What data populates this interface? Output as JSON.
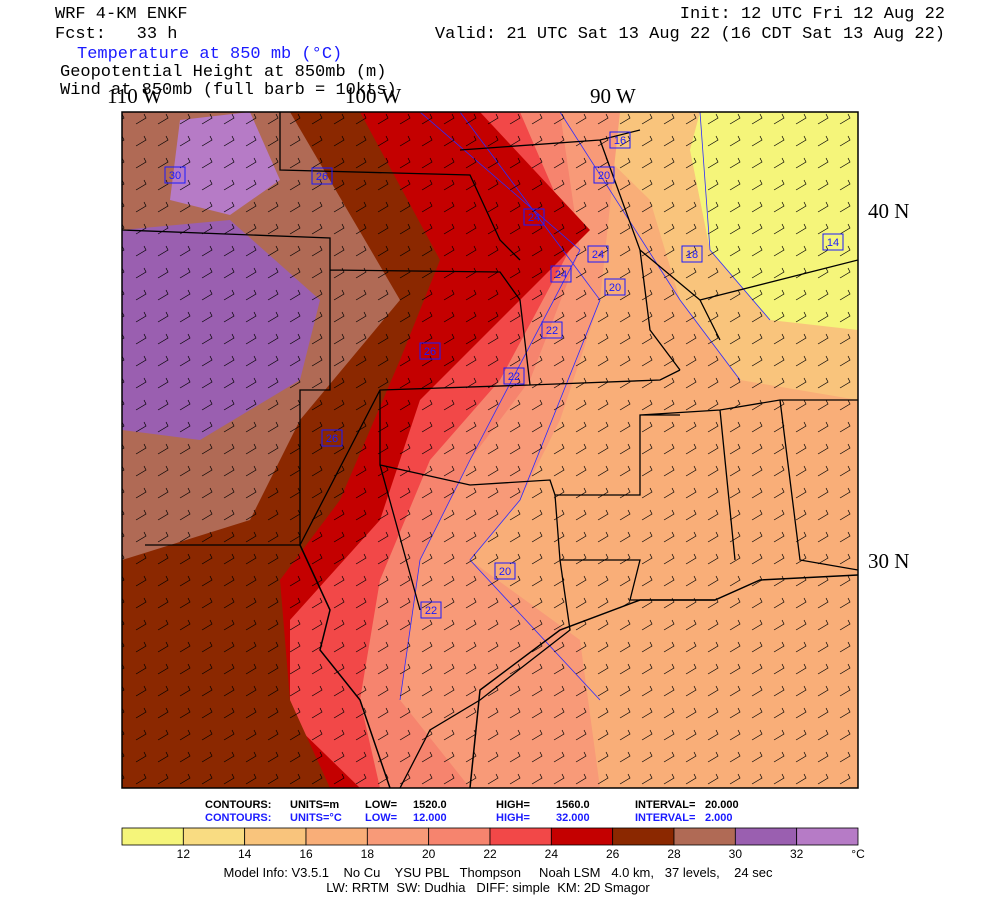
{
  "header": {
    "model": "WRF 4-KM ENKF",
    "fcst": "Fcst:   33 h",
    "init": "Init: 12 UTC Fri 12 Aug 22",
    "valid": "Valid: 21 UTC Sat 13 Aug 22 (16 CDT Sat 13 Aug 22)",
    "fields": [
      "Temperature at 850 mb (°C)",
      "Geopotential Height at 850mb (m)",
      "Wind at 850mb (full barb = 10kts)"
    ]
  },
  "map": {
    "lon_labels": [
      "110 W",
      "100 W",
      "90 W"
    ],
    "lat_labels": [
      "40 N",
      "30 N"
    ],
    "contour_labels": [
      "16",
      "20",
      "24",
      "24",
      "18",
      "14",
      "24",
      "20",
      "22",
      "22",
      "26",
      "26",
      "26",
      "30",
      "20",
      "22"
    ]
  },
  "footer": {
    "height_row": [
      "CONTOURS:",
      "UNITS=m",
      "LOW=",
      "1520.0",
      "HIGH=",
      "1560.0",
      "INTERVAL=",
      "20.000"
    ],
    "temp_row": [
      "CONTOURS:",
      "UNITS=°C",
      "LOW=",
      "12.000",
      "HIGH=",
      "32.000",
      "INTERVAL=",
      "2.000"
    ],
    "model_info": "Model Info: V3.5.1    No Cu    YSU PBL   Thompson     Noah LSM   4.0 km,   37 levels,    24 sec",
    "physics": "LW: RRTM  SW: Dudhia   DIFF: simple  KM: 2D Smagor"
  },
  "colorbar": {
    "colors": [
      "#f5f57a",
      "#f9dc82",
      "#f9c47c",
      "#f9ae78",
      "#f89a78",
      "#f6846e",
      "#f24848",
      "#c40000",
      "#8b2800",
      "#b06a55",
      "#9a5fb0",
      "#b67bc6"
    ],
    "labels": [
      "12",
      "14",
      "16",
      "18",
      "20",
      "22",
      "24",
      "26",
      "28",
      "30",
      "32",
      "°C"
    ]
  }
}
